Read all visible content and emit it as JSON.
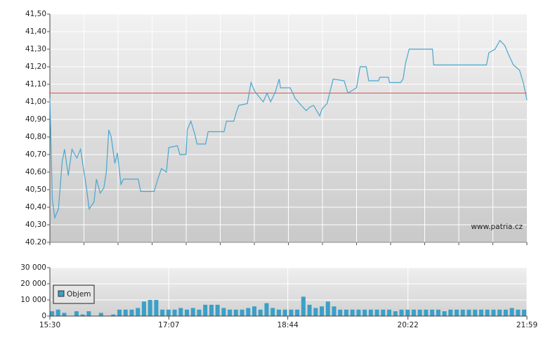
{
  "chart_data": [
    {
      "type": "line",
      "color": "#4aa6cf",
      "x": [
        "15:30",
        "15:31",
        "15:32",
        "15:34",
        "15:37",
        "15:40",
        "15:42",
        "15:45",
        "15:48",
        "15:52",
        "15:55",
        "15:57",
        "16:00",
        "16:02",
        "16:06",
        "16:08",
        "16:11",
        "16:14",
        "16:16",
        "16:18",
        "16:20",
        "16:23",
        "16:25",
        "16:28",
        "16:30",
        "16:42",
        "16:44",
        "16:55",
        "16:58",
        "17:01",
        "17:05",
        "17:07",
        "17:14",
        "17:16",
        "17:21",
        "17:22",
        "17:25",
        "17:28",
        "17:30",
        "17:37",
        "17:39",
        "17:52",
        "17:54",
        "18:00",
        "18:02",
        "18:04",
        "18:11",
        "18:14",
        "18:17",
        "18:24",
        "18:27",
        "18:30",
        "18:34",
        "18:37",
        "18:38",
        "18:46",
        "18:50",
        "18:55",
        "18:59",
        "19:02",
        "19:05",
        "19:10",
        "19:12",
        "19:16",
        "19:21",
        "19:30",
        "19:33",
        "19:40",
        "19:43",
        "19:48",
        "19:50",
        "19:58",
        "19:59",
        "20:06",
        "20:07",
        "20:16",
        "20:18",
        "20:20",
        "20:23",
        "20:42",
        "20:43",
        "21:26",
        "21:28",
        "21:33",
        "21:37",
        "21:41",
        "21:44",
        "21:48",
        "21:53",
        "21:56",
        "21:59"
      ],
      "values": [
        41.02,
        40.74,
        40.44,
        40.34,
        40.39,
        40.66,
        40.73,
        40.58,
        40.73,
        40.68,
        40.73,
        40.64,
        40.5,
        40.39,
        40.43,
        40.56,
        40.48,
        40.51,
        40.6,
        40.84,
        40.8,
        40.65,
        40.71,
        40.53,
        40.56,
        40.56,
        40.49,
        40.49,
        40.56,
        40.62,
        40.6,
        40.74,
        40.75,
        40.7,
        40.7,
        40.84,
        40.89,
        40.82,
        40.76,
        40.76,
        40.83,
        40.83,
        40.89,
        40.89,
        40.94,
        40.98,
        40.99,
        41.11,
        41.06,
        41.0,
        41.05,
        41.0,
        41.06,
        41.13,
        41.08,
        41.08,
        41.02,
        40.98,
        40.95,
        40.97,
        40.98,
        40.92,
        40.96,
        40.99,
        41.13,
        41.12,
        41.05,
        41.08,
        41.2,
        41.2,
        41.12,
        41.12,
        41.14,
        41.14,
        41.11,
        41.11,
        41.13,
        41.22,
        41.3,
        41.3,
        41.21,
        41.21,
        41.28,
        41.3,
        41.35,
        41.32,
        41.27,
        41.21,
        41.18,
        41.11,
        41.01
      ],
      "xlim": [
        "15:30",
        "21:59"
      ],
      "ylim": [
        40.2,
        41.5
      ],
      "yticks": [
        {
          "value": 40.2,
          "label": "40.20"
        },
        {
          "value": 40.3,
          "label": "40,30"
        },
        {
          "value": 40.4,
          "label": "40,40"
        },
        {
          "value": 40.5,
          "label": "40,50"
        },
        {
          "value": 40.6,
          "label": "40,60"
        },
        {
          "value": 40.7,
          "label": "40,70"
        },
        {
          "value": 40.8,
          "label": "40,80"
        },
        {
          "value": 40.9,
          "label": "40,90"
        },
        {
          "value": 41.0,
          "label": "41,00"
        },
        {
          "value": 41.1,
          "label": "41,10"
        },
        {
          "value": 41.2,
          "label": "41,20"
        },
        {
          "value": 41.3,
          "label": "41,30"
        },
        {
          "value": 41.4,
          "label": "41,40"
        },
        {
          "value": 41.5,
          "label": "41,50"
        }
      ],
      "reference_line": {
        "value": 41.05,
        "color": "#d9534f"
      },
      "watermark": "www.patria.cz",
      "grid": true
    },
    {
      "type": "bar",
      "x": [
        "15:30",
        "15:35",
        "15:40",
        "15:45",
        "15:50",
        "15:55",
        "16:00",
        "16:05",
        "16:10",
        "16:15",
        "16:20",
        "16:25",
        "16:30",
        "16:35",
        "16:40",
        "16:45",
        "16:50",
        "16:55",
        "17:00",
        "17:05",
        "17:10",
        "17:15",
        "17:20",
        "17:25",
        "17:30",
        "17:35",
        "17:40",
        "17:45",
        "17:50",
        "17:55",
        "18:00",
        "18:05",
        "18:10",
        "18:15",
        "18:20",
        "18:25",
        "18:30",
        "18:35",
        "18:40",
        "18:45",
        "18:50",
        "18:55",
        "19:00",
        "19:05",
        "19:10",
        "19:15",
        "19:20",
        "19:25",
        "19:30",
        "19:35",
        "19:40",
        "19:45",
        "19:50",
        "19:55",
        "20:00",
        "20:05",
        "20:10",
        "20:15",
        "20:20",
        "20:25",
        "20:30",
        "20:35",
        "20:40",
        "20:45",
        "20:50",
        "20:55",
        "21:00",
        "21:05",
        "21:10",
        "21:15",
        "21:20",
        "21:25",
        "21:30",
        "21:35",
        "21:40",
        "21:45",
        "21:50",
        "21:55"
      ],
      "series": [
        {
          "name": "Objem",
          "color": "#3aa0c8",
          "values": [
            3000,
            4000,
            2000,
            0,
            3000,
            1000,
            3000,
            0,
            2000,
            0,
            1000,
            4000,
            4000,
            4000,
            5000,
            9000,
            10000,
            10000,
            4000,
            4000,
            4000,
            5000,
            4000,
            5000,
            4000,
            7000,
            7000,
            7000,
            5000,
            4000,
            4000,
            4000,
            5000,
            6000,
            4000,
            8000,
            5000,
            4000,
            4000,
            4000,
            4000,
            12000,
            7000,
            5000,
            6000,
            9000,
            6000,
            4000,
            4000,
            4000,
            4000,
            4000,
            4000,
            4000,
            4000,
            4000,
            3000,
            4000,
            4000,
            4000,
            4000,
            4000,
            4000,
            4000,
            3000,
            4000,
            4000,
            4000,
            4000,
            4000,
            4000,
            4000,
            4000,
            4000,
            4000,
            5000,
            4000,
            4000
          ]
        }
      ],
      "xlim": [
        "15:30",
        "21:59"
      ],
      "xticks": [
        "15:30",
        "17:07",
        "18:44",
        "20:22",
        "21:59"
      ],
      "ylim": [
        0,
        30000
      ],
      "yticks": [
        0,
        {
          "value": 10000,
          "label": "10 000"
        },
        {
          "value": 20000,
          "label": "20 000"
        },
        {
          "value": 30000,
          "label": "30 000"
        }
      ],
      "grid": true
    }
  ]
}
